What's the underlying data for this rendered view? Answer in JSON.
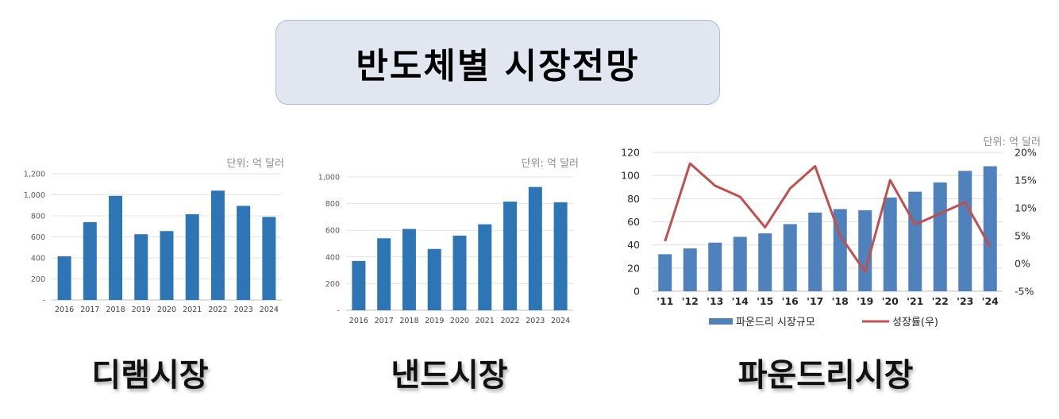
{
  "title": "반도체별 시장전망",
  "captions": {
    "dram": "디램시장",
    "nand": "낸드시장",
    "foundry": "파운드리시장"
  },
  "chart_data": [
    {
      "id": "dram",
      "type": "bar",
      "unit_note": "단위: 억 달러",
      "categories": [
        "2016",
        "2017",
        "2018",
        "2019",
        "2020",
        "2021",
        "2022",
        "2023",
        "2024"
      ],
      "values": [
        415,
        740,
        990,
        625,
        655,
        815,
        1040,
        895,
        790
      ],
      "ylim": [
        0,
        1200
      ],
      "yticks": [
        0,
        200,
        400,
        600,
        800,
        1000,
        1200
      ],
      "ytick_labels": [
        "-",
        "200",
        "400",
        "600",
        "800",
        "1,000",
        "1,200"
      ],
      "grid": true,
      "bar_color": "#2e75b6"
    },
    {
      "id": "nand",
      "type": "bar",
      "unit_note": "단위: 억 달러",
      "categories": [
        "2016",
        "2017",
        "2018",
        "2019",
        "2020",
        "2021",
        "2022",
        "2023",
        "2024"
      ],
      "values": [
        370,
        540,
        610,
        460,
        560,
        645,
        815,
        925,
        810
      ],
      "ylim": [
        0,
        1000
      ],
      "yticks": [
        0,
        200,
        400,
        600,
        800,
        1000
      ],
      "ytick_labels": [
        "-",
        "200",
        "400",
        "600",
        "800",
        "1,000"
      ],
      "grid": true,
      "bar_color": "#2e75b6"
    },
    {
      "id": "foundry",
      "type": "bar",
      "unit_note": "단위: 억 달러",
      "categories": [
        "'11",
        "'12",
        "'13",
        "'14",
        "'15",
        "'16",
        "'17",
        "'18",
        "'19",
        "'20",
        "'21",
        "'22",
        "'23",
        "'24"
      ],
      "series": [
        {
          "name": "파운드리 시장규모",
          "type": "bar",
          "axis": "left",
          "color": "#4f81bd",
          "values": [
            32,
            37,
            42,
            47,
            50,
            58,
            68,
            71,
            70,
            81,
            86,
            94,
            104,
            108
          ]
        },
        {
          "name": "성장률(우)",
          "type": "line",
          "axis": "right",
          "color": "#c0504d",
          "values": [
            4,
            18,
            14,
            12,
            6.5,
            13.5,
            17.5,
            5,
            -1.5,
            15,
            7,
            9,
            11,
            3
          ]
        }
      ],
      "ylim": [
        0,
        120
      ],
      "yticks": [
        0,
        20,
        40,
        60,
        80,
        100,
        120
      ],
      "ylim_right": [
        -5,
        20
      ],
      "yticks_right": [
        "-5%",
        "0%",
        "5%",
        "10%",
        "15%",
        "20%"
      ],
      "grid": true,
      "legend_position": "bottom"
    }
  ]
}
